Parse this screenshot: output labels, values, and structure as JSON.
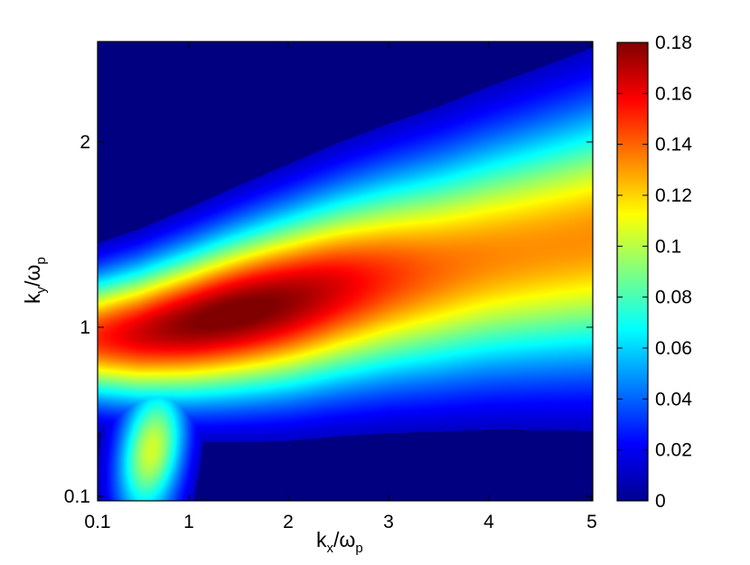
{
  "chart_data": {
    "type": "heatmap",
    "title": "",
    "xlabel": {
      "main": "k",
      "sub1": "x",
      "sep": "/ω",
      "sub2": "p"
    },
    "ylabel": {
      "main": "k",
      "sub1": "y",
      "sep": "/ω",
      "sub2": "p"
    },
    "x_ticks": [
      {
        "value": 0.1,
        "label": "0.1"
      },
      {
        "value": 1,
        "label": "1"
      },
      {
        "value": 2,
        "label": "2"
      },
      {
        "value": 3,
        "label": "3"
      },
      {
        "value": 4,
        "label": "4"
      },
      {
        "value": 5,
        "label": "5"
      }
    ],
    "y_ticks": [
      {
        "value": 0.1,
        "label": "0.1"
      },
      {
        "value": 1,
        "label": "1"
      },
      {
        "value": 2,
        "label": "2"
      }
    ],
    "xlim": [
      0.1,
      5
    ],
    "ylim": [
      0.1,
      2.5
    ],
    "colormap": "jet",
    "colorbar": {
      "range": [
        0,
        0.18
      ],
      "ticks": [
        {
          "value": 0,
          "label": "0"
        },
        {
          "value": 0.02,
          "label": "0.02"
        },
        {
          "value": 0.04,
          "label": "0.04"
        },
        {
          "value": 0.06,
          "label": "0.06"
        },
        {
          "value": 0.08,
          "label": "0.08"
        },
        {
          "value": 0.1,
          "label": "0.1"
        },
        {
          "value": 0.12,
          "label": "0.12"
        },
        {
          "value": 0.14,
          "label": "0.14"
        },
        {
          "value": 0.16,
          "label": "0.16"
        },
        {
          "value": 0.18,
          "label": "0.18"
        }
      ]
    },
    "grid": false,
    "peak": {
      "x": 1.4,
      "y": 1.02,
      "value": 0.18
    },
    "ridge": [
      {
        "x": 0.1,
        "y": 0.95
      },
      {
        "x": 0.5,
        "y": 0.97
      },
      {
        "x": 1,
        "y": 1.02
      },
      {
        "x": 1.5,
        "y": 1.08
      },
      {
        "x": 2,
        "y": 1.14
      },
      {
        "x": 2.5,
        "y": 1.21
      },
      {
        "x": 3,
        "y": 1.27
      },
      {
        "x": 3.5,
        "y": 1.32
      },
      {
        "x": 4,
        "y": 1.38
      },
      {
        "x": 4.5,
        "y": 1.43
      },
      {
        "x": 5,
        "y": 1.48
      }
    ]
  }
}
